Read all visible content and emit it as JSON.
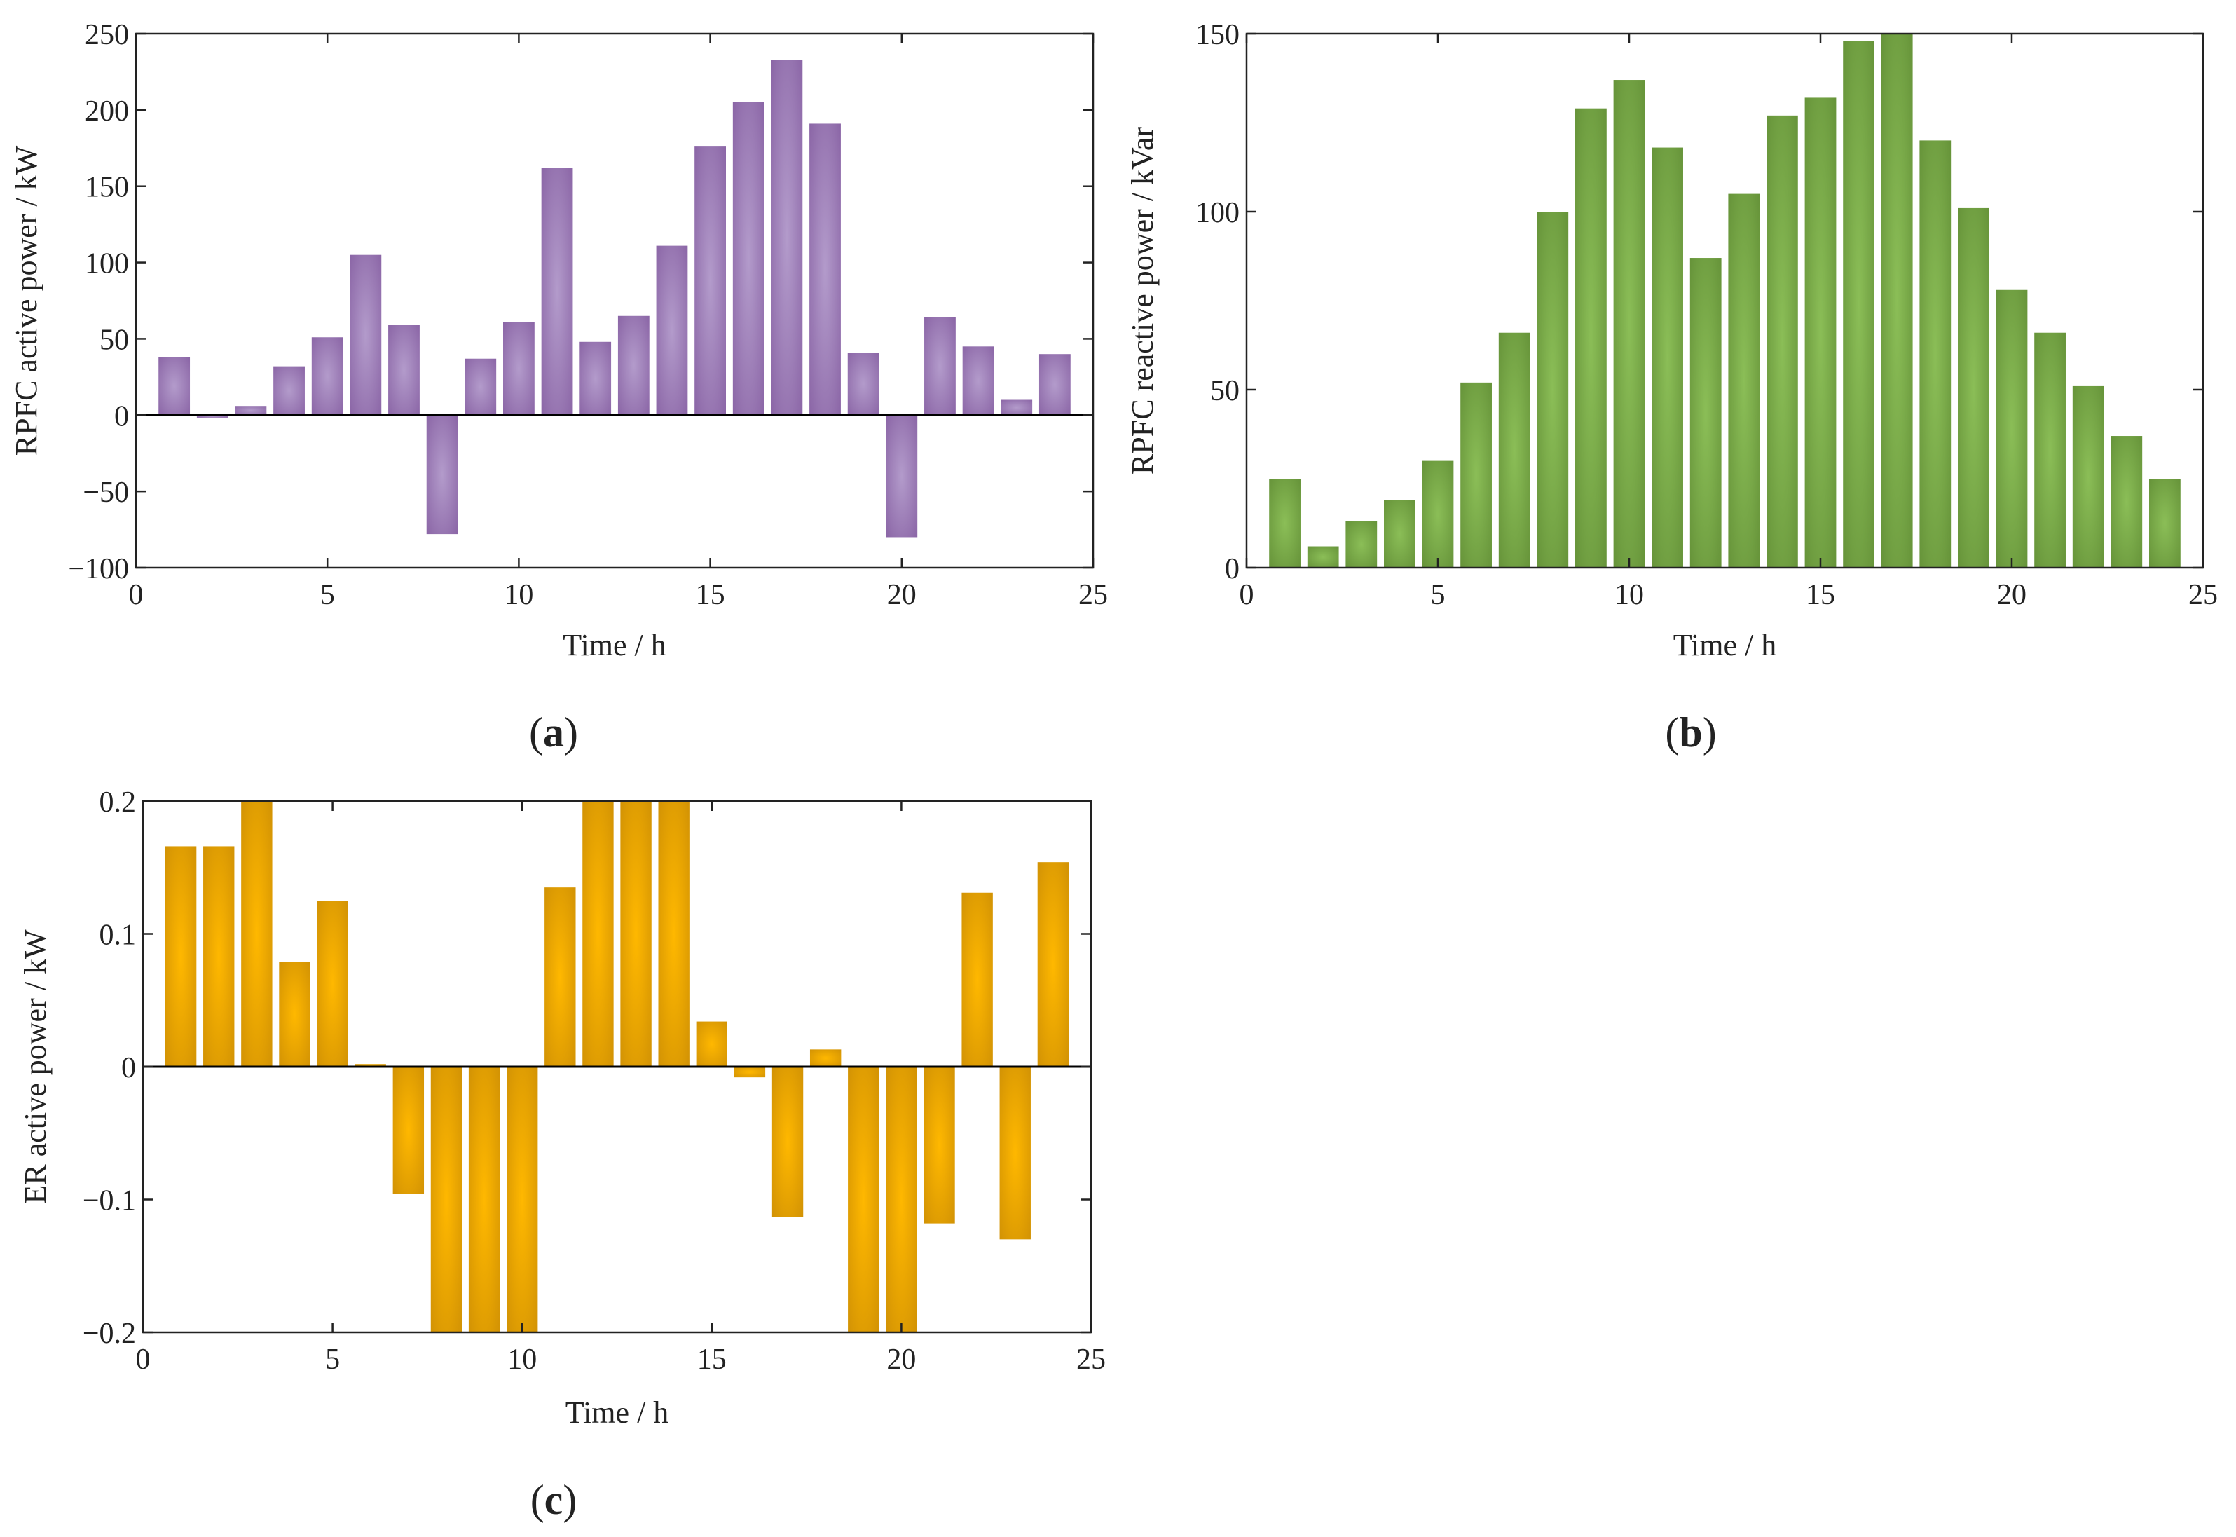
{
  "chart_data": [
    {
      "id": "a",
      "type": "bar",
      "caption_letter": "a",
      "xlabel": "Time / h",
      "ylabel": "RPFC active power / kW",
      "xlim": [
        0,
        25
      ],
      "ylim": [
        -100,
        250
      ],
      "xticks": [
        0,
        5,
        10,
        15,
        20,
        25
      ],
      "xtick_labels": [
        "0",
        "5",
        "10",
        "15",
        "20",
        "25"
      ],
      "yticks": [
        -100,
        -50,
        0,
        50,
        100,
        150,
        200,
        250
      ],
      "ytick_labels": [
        "−100",
        "−50",
        "0",
        "50",
        "100",
        "150",
        "200",
        "250"
      ],
      "zero_line": true,
      "grid": false,
      "colors": {
        "center": "#b39bcb",
        "edge": "#825a9e"
      },
      "x": [
        1,
        2,
        3,
        4,
        5,
        6,
        7,
        8,
        9,
        10,
        11,
        12,
        13,
        14,
        15,
        16,
        17,
        18,
        19,
        20,
        21,
        22,
        23,
        24
      ],
      "values": [
        38,
        -2,
        6,
        32,
        51,
        105,
        59,
        -78,
        37,
        61,
        162,
        48,
        65,
        111,
        176,
        205,
        233,
        191,
        41,
        -80,
        64,
        45,
        10,
        40
      ]
    },
    {
      "id": "b",
      "type": "bar",
      "caption_letter": "b",
      "xlabel": "Time / h",
      "ylabel": "RPFC reactive power / kVar",
      "xlim": [
        0,
        25
      ],
      "ylim": [
        0,
        150
      ],
      "xticks": [
        0,
        5,
        10,
        15,
        20,
        25
      ],
      "xtick_labels": [
        "0",
        "5",
        "10",
        "15",
        "20",
        "25"
      ],
      "yticks": [
        0,
        50,
        100,
        150
      ],
      "ytick_labels": [
        "0",
        "50",
        "100",
        "150"
      ],
      "zero_line": false,
      "grid": false,
      "colors": {
        "center": "#8bbe57",
        "edge": "#5e8a33"
      },
      "x": [
        1,
        2,
        3,
        4,
        5,
        6,
        7,
        8,
        9,
        10,
        11,
        12,
        13,
        14,
        15,
        16,
        17,
        18,
        19,
        20,
        21,
        22,
        23,
        24
      ],
      "values": [
        25,
        6,
        13,
        19,
        30,
        52,
        66,
        100,
        129,
        137,
        118,
        87,
        105,
        127,
        132,
        148,
        150,
        120,
        101,
        78,
        66,
        51,
        37,
        25
      ]
    },
    {
      "id": "c",
      "type": "bar",
      "caption_letter": "c",
      "xlabel": "Time / h",
      "ylabel": "ER active power / kW",
      "xlim": [
        0,
        25
      ],
      "ylim": [
        -0.2,
        0.2
      ],
      "xticks": [
        0,
        5,
        10,
        15,
        20,
        25
      ],
      "xtick_labels": [
        "0",
        "5",
        "10",
        "15",
        "20",
        "25"
      ],
      "yticks": [
        -0.2,
        -0.1,
        0,
        0.1,
        0.2
      ],
      "ytick_labels": [
        "−0.2",
        "−0.1",
        "0",
        "0.1",
        "0.2"
      ],
      "zero_line": true,
      "grid": false,
      "colors": {
        "center": "#ffb800",
        "edge": "#c88a05"
      },
      "x": [
        1,
        2,
        3,
        4,
        5,
        6,
        7,
        8,
        9,
        10,
        11,
        12,
        13,
        14,
        15,
        16,
        17,
        18,
        19,
        20,
        21,
        22,
        23,
        24
      ],
      "values": [
        0.166,
        0.166,
        0.2,
        0.079,
        0.125,
        0.002,
        -0.096,
        -0.2,
        -0.2,
        -0.2,
        0.135,
        0.2,
        0.2,
        0.2,
        0.034,
        -0.008,
        -0.113,
        0.013,
        -0.2,
        -0.2,
        -0.118,
        0.131,
        -0.13,
        0.154
      ]
    }
  ]
}
